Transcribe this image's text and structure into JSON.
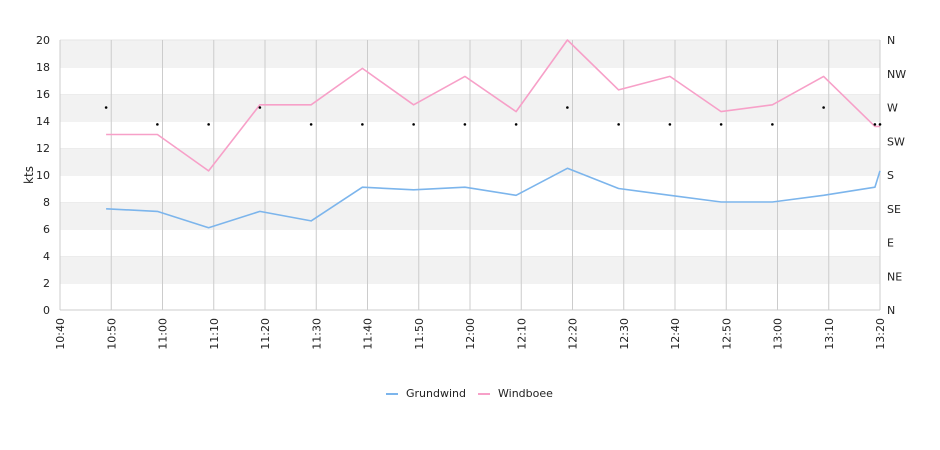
{
  "chart_data": {
    "type": "line",
    "title": "",
    "xlabel": "",
    "ylabel": "kts",
    "ylim": [
      0,
      20
    ],
    "yticks": [
      0,
      2,
      4,
      6,
      8,
      10,
      12,
      14,
      16,
      18,
      20
    ],
    "xlim": [
      "10:40",
      "13:20"
    ],
    "xticks": [
      "10:40",
      "10:50",
      "11:00",
      "11:10",
      "11:20",
      "11:30",
      "11:40",
      "11:50",
      "12:00",
      "12:10",
      "12:20",
      "12:30",
      "12:40",
      "12:50",
      "13:00",
      "13:10",
      "13:20"
    ],
    "y2_ticks": [
      "N",
      "NE",
      "E",
      "SE",
      "S",
      "SW",
      "W",
      "NW",
      "N"
    ],
    "grid": "horizontal bands and vertical lines",
    "legend_position": "bottom",
    "series": [
      {
        "name": "Grundwind",
        "color": "#7cb5ec",
        "points": [
          [
            "10:49",
            7.5
          ],
          [
            "10:59",
            7.3
          ],
          [
            "11:09",
            6.1
          ],
          [
            "11:19",
            7.3
          ],
          [
            "11:29",
            6.6
          ],
          [
            "11:39",
            9.1
          ],
          [
            "11:49",
            8.9
          ],
          [
            "11:59",
            9.1
          ],
          [
            "12:09",
            8.5
          ],
          [
            "12:19",
            10.5
          ],
          [
            "12:29",
            9.0
          ],
          [
            "12:39",
            8.5
          ],
          [
            "12:49",
            8.0
          ],
          [
            "12:59",
            8.0
          ],
          [
            "13:09",
            8.5
          ],
          [
            "13:19",
            9.1
          ],
          [
            "13:20",
            10.3
          ]
        ]
      },
      {
        "name": "Windboee",
        "color": "#f7a0c8",
        "points": [
          [
            "10:49",
            13.0
          ],
          [
            "10:59",
            13.0
          ],
          [
            "11:09",
            10.3
          ],
          [
            "11:19",
            15.2
          ],
          [
            "11:29",
            15.2
          ],
          [
            "11:39",
            17.9
          ],
          [
            "11:49",
            15.2
          ],
          [
            "11:59",
            17.3
          ],
          [
            "12:09",
            14.7
          ],
          [
            "12:19",
            20.0
          ],
          [
            "12:29",
            16.3
          ],
          [
            "12:39",
            17.3
          ],
          [
            "12:49",
            14.7
          ],
          [
            "12:59",
            15.2
          ],
          [
            "13:09",
            17.3
          ],
          [
            "13:19",
            13.6
          ],
          [
            "13:20",
            13.6
          ]
        ]
      }
    ],
    "direction_points": [
      [
        "10:49",
        "W"
      ],
      [
        "10:59",
        "WSW"
      ],
      [
        "11:09",
        "WSW"
      ],
      [
        "11:19",
        "W"
      ],
      [
        "11:29",
        "WSW"
      ],
      [
        "11:39",
        "WSW"
      ],
      [
        "11:49",
        "WSW"
      ],
      [
        "11:59",
        "WSW"
      ],
      [
        "12:09",
        "WSW"
      ],
      [
        "12:19",
        "W"
      ],
      [
        "12:29",
        "WSW"
      ],
      [
        "12:39",
        "WSW"
      ],
      [
        "12:49",
        "WSW"
      ],
      [
        "12:59",
        "WSW"
      ],
      [
        "13:09",
        "W"
      ],
      [
        "13:19",
        "WSW"
      ],
      [
        "13:20",
        "WSW"
      ]
    ]
  }
}
